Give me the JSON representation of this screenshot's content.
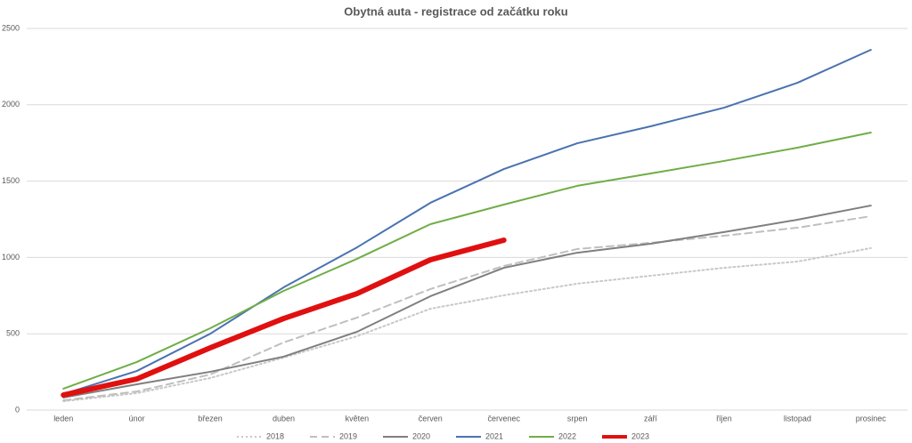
{
  "chart_data": {
    "type": "line",
    "title": "Obytná auta - registrace od začátku roku",
    "categories": [
      "leden",
      "únor",
      "březen",
      "duben",
      "květen",
      "červen",
      "červenec",
      "srpen",
      "září",
      "říjen",
      "listopad",
      "prosinec"
    ],
    "series": [
      {
        "name": "2018",
        "color": "#c8c8c8",
        "line_style": "dotted",
        "values": [
          58,
          111,
          210,
          344,
          484,
          664,
          752,
          828,
          880,
          932,
          973,
          1061
        ]
      },
      {
        "name": "2019",
        "color": "#bfbfbf",
        "line_style": "dashed",
        "values": [
          64,
          122,
          233,
          443,
          606,
          793,
          944,
          1055,
          1096,
          1142,
          1195,
          1270
        ]
      },
      {
        "name": "2020",
        "color": "#7f7f7f",
        "line_style": "solid",
        "values": [
          82,
          169,
          251,
          350,
          513,
          746,
          932,
          1031,
          1090,
          1166,
          1247,
          1340
        ]
      },
      {
        "name": "2021",
        "color": "#4a72b0",
        "line_style": "solid",
        "values": [
          105,
          256,
          500,
          804,
          1066,
          1358,
          1579,
          1748,
          1859,
          1981,
          2144,
          2360
        ]
      },
      {
        "name": "2022",
        "color": "#70ad47",
        "line_style": "solid",
        "values": [
          140,
          315,
          536,
          781,
          991,
          1218,
          1346,
          1469,
          1550,
          1632,
          1719,
          1818
        ]
      },
      {
        "name": "2023",
        "color": "#e01010",
        "line_style": "solid",
        "bold": true,
        "values": [
          99,
          204,
          408,
          600,
          763,
          985,
          1113,
          null,
          null,
          null,
          null,
          null
        ]
      }
    ],
    "ylim": [
      0,
      2500
    ],
    "yticks": [
      0,
      500,
      1000,
      1500,
      2000,
      2500
    ],
    "grid": true,
    "legend": "bottom"
  }
}
